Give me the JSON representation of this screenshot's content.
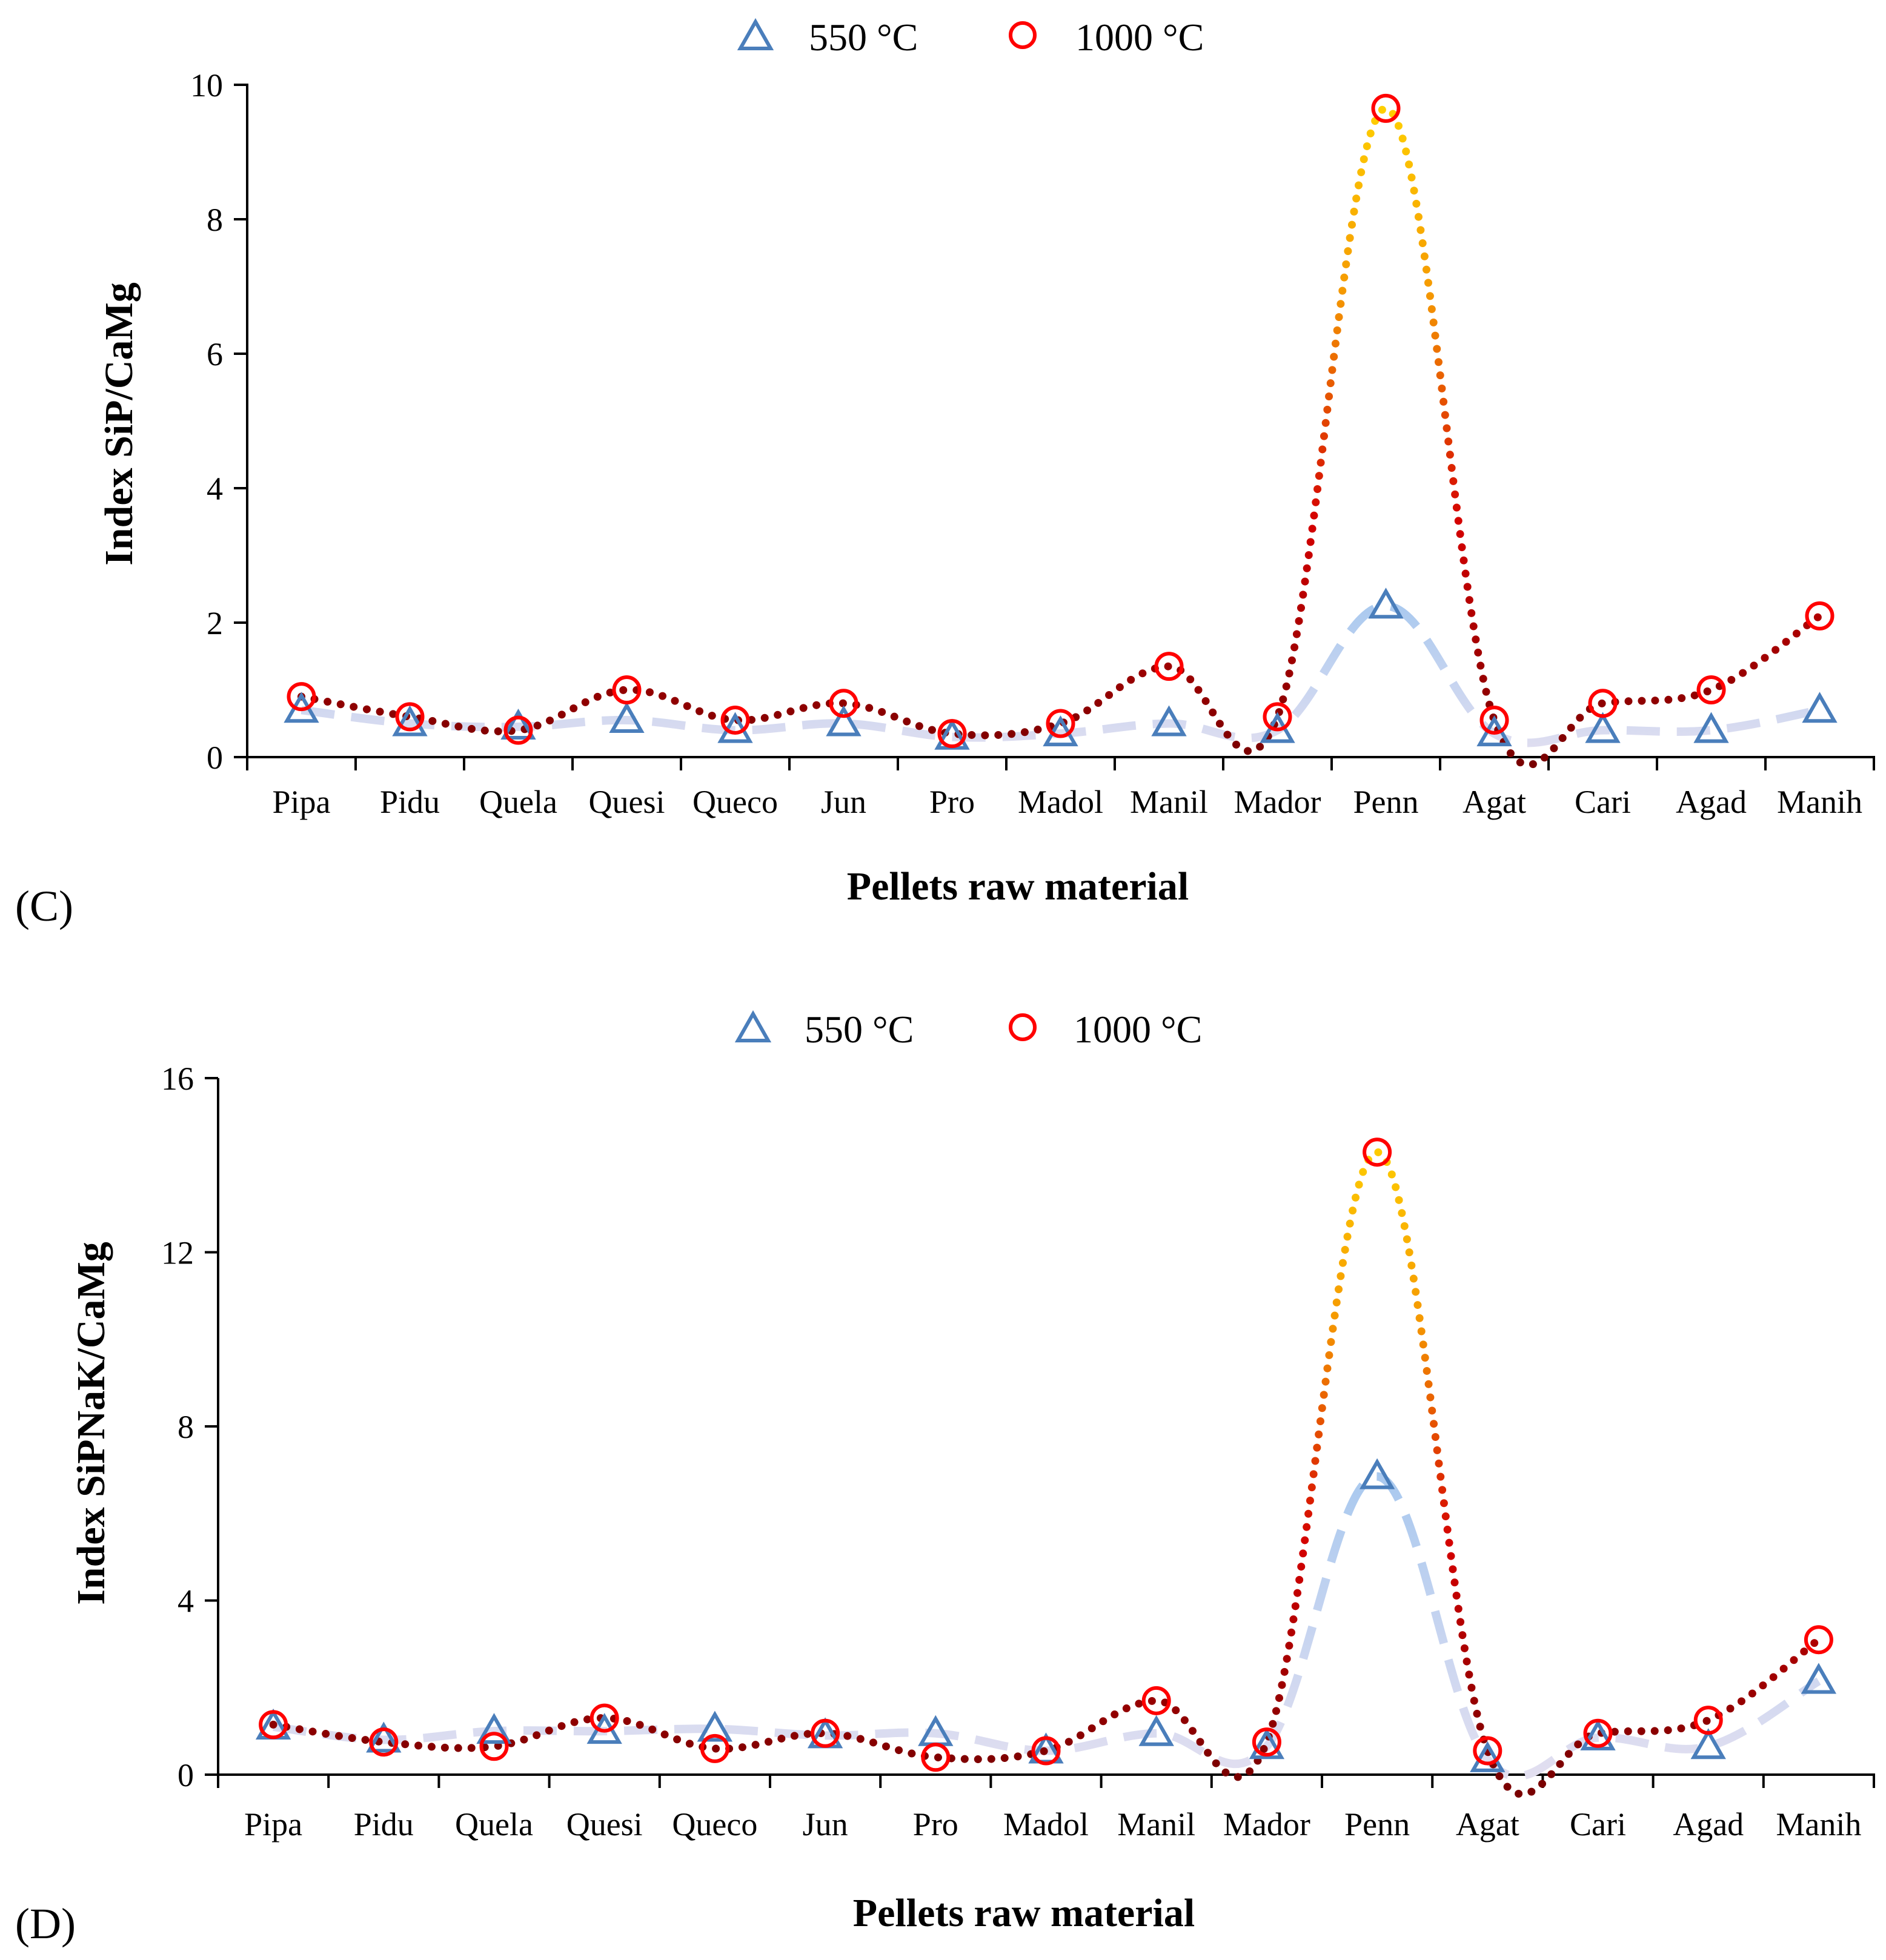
{
  "legend": {
    "series1_label": "550 °C",
    "series2_label": "1000 °C"
  },
  "colors": {
    "series1_line": "#9fc5ef",
    "series1_line_light": "#e2dff0",
    "series1_marker": "#4a7ebb",
    "series2_marker": "#ff0000",
    "series2_line_dark": "#7a0000",
    "series2_line_red": "#d40000",
    "series2_line_orange": "#f59a00",
    "series2_line_yellow": "#ffd400"
  },
  "chart_data": [
    {
      "type": "line",
      "panel_label": "(C)",
      "title": "",
      "xlabel": "Pellets raw material",
      "ylabel": "Index SiP/CaMg",
      "ylim": [
        0,
        10
      ],
      "yticks": [
        0,
        2,
        4,
        6,
        8,
        10
      ],
      "grid": false,
      "legend_position": "top-center",
      "categories": [
        "Pipa",
        "Pidu",
        "Quela",
        "Quesi",
        "Queco",
        "Jun",
        "Pro",
        "Madol",
        "Manil",
        "Mador",
        "Penn",
        "Agat",
        "Cari",
        "Agad",
        "Manih"
      ],
      "series": [
        {
          "name": "550 °C",
          "values": [
            0.7,
            0.5,
            0.45,
            0.55,
            0.4,
            0.5,
            0.3,
            0.35,
            0.5,
            0.4,
            2.25,
            0.35,
            0.4,
            0.4,
            0.7
          ]
        },
        {
          "name": "1000 °C",
          "values": [
            0.9,
            0.6,
            0.4,
            1.0,
            0.55,
            0.8,
            0.35,
            0.5,
            1.35,
            0.6,
            9.65,
            0.55,
            0.8,
            1.0,
            2.1
          ]
        }
      ]
    },
    {
      "type": "line",
      "panel_label": "(D)",
      "title": "",
      "xlabel": "Pellets raw material",
      "ylabel": "Index SiPNaK/CaMg",
      "ylim": [
        0,
        16
      ],
      "yticks": [
        0,
        4,
        8,
        12,
        16
      ],
      "grid": false,
      "legend_position": "top-center",
      "categories": [
        "Pipa",
        "Pidu",
        "Quela",
        "Quesi",
        "Queco",
        "Jun",
        "Pro",
        "Madol",
        "Manil",
        "Mador",
        "Penn",
        "Agat",
        "Cari",
        "Agad",
        "Manih"
      ],
      "series": [
        {
          "name": "550 °C",
          "values": [
            1.1,
            0.8,
            1.0,
            1.0,
            1.05,
            0.9,
            0.95,
            0.55,
            0.95,
            0.65,
            6.85,
            0.35,
            0.85,
            0.65,
            2.15
          ]
        },
        {
          "name": "1000 °C",
          "values": [
            1.15,
            0.75,
            0.65,
            1.3,
            0.6,
            0.95,
            0.4,
            0.55,
            1.7,
            0.75,
            14.3,
            0.55,
            0.95,
            1.25,
            3.1
          ]
        }
      ]
    }
  ]
}
